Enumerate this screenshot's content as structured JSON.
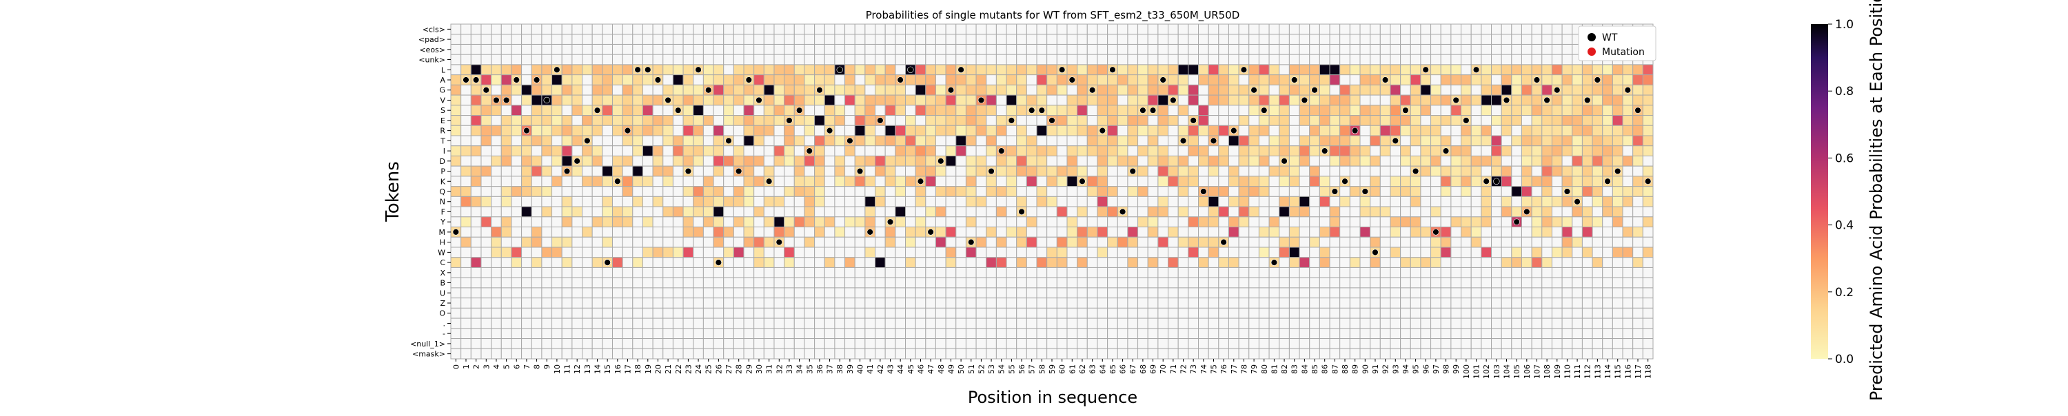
{
  "chart_data": {
    "type": "heatmap",
    "title": "Probabilities of single mutants for WT from SFT_esm2_t33_650M_UR50D",
    "xlabel": "Position in sequence",
    "ylabel": "Tokens",
    "colorbar_label": "Predicted Amino Acid Probabilities at Each Position",
    "colorbar_ticks": [
      "0.0",
      "0.2",
      "0.4",
      "0.6",
      "0.8",
      "1.0"
    ],
    "colorbar_range": [
      0,
      1
    ],
    "colormap": "magma_r",
    "tokens": [
      "<cls>",
      "<pad>",
      "<eos>",
      "<unk>",
      "L",
      "A",
      "G",
      "V",
      "S",
      "E",
      "R",
      "T",
      "I",
      "D",
      "P",
      "K",
      "Q",
      "N",
      "F",
      "Y",
      "M",
      "H",
      "W",
      "C",
      "X",
      "B",
      "U",
      "Z",
      "O",
      ".",
      "-",
      "<null_1>",
      "<mask>"
    ],
    "positions": [
      0,
      118
    ],
    "legend": {
      "position": "top-right",
      "entries": [
        {
          "label": "WT",
          "color": "#000000"
        },
        {
          "label": "Mutation",
          "color": "#e31a1c"
        }
      ]
    },
    "wt_sequence": "MAAGVVARAVLPDTSCKRLLAVSPLGCTPAVKHESIGRLTPMEYALKMDGLHVPIEFSSELAKGRLFPSSAVTEQTHRLGSCDAVGIQKRQWATSPLMIVELKKVYFAVGQNVAKPGSKLA",
    "strong_cells": [
      [
        4,
        2
      ],
      [
        4,
        38
      ],
      [
        4,
        45
      ],
      [
        4,
        72
      ],
      [
        4,
        73
      ],
      [
        4,
        86
      ],
      [
        4,
        87
      ],
      [
        5,
        10
      ],
      [
        5,
        22
      ],
      [
        6,
        7
      ],
      [
        6,
        31
      ],
      [
        6,
        46
      ],
      [
        6,
        96
      ],
      [
        6,
        104
      ],
      [
        7,
        8
      ],
      [
        7,
        9
      ],
      [
        7,
        37
      ],
      [
        7,
        55
      ],
      [
        7,
        70
      ],
      [
        7,
        102
      ],
      [
        7,
        103
      ],
      [
        8,
        24
      ],
      [
        9,
        36
      ],
      [
        10,
        40
      ],
      [
        10,
        43
      ],
      [
        10,
        58
      ],
      [
        11,
        29
      ],
      [
        11,
        50
      ],
      [
        11,
        77
      ],
      [
        12,
        19
      ],
      [
        13,
        11
      ],
      [
        13,
        49
      ],
      [
        14,
        15
      ],
      [
        14,
        18
      ],
      [
        15,
        61
      ],
      [
        15,
        103
      ],
      [
        16,
        105
      ],
      [
        17,
        41
      ],
      [
        17,
        75
      ],
      [
        17,
        84
      ],
      [
        18,
        7
      ],
      [
        18,
        26
      ],
      [
        18,
        44
      ],
      [
        18,
        82
      ],
      [
        19,
        32
      ],
      [
        22,
        83
      ],
      [
        23,
        42
      ]
    ],
    "note": ""
  }
}
